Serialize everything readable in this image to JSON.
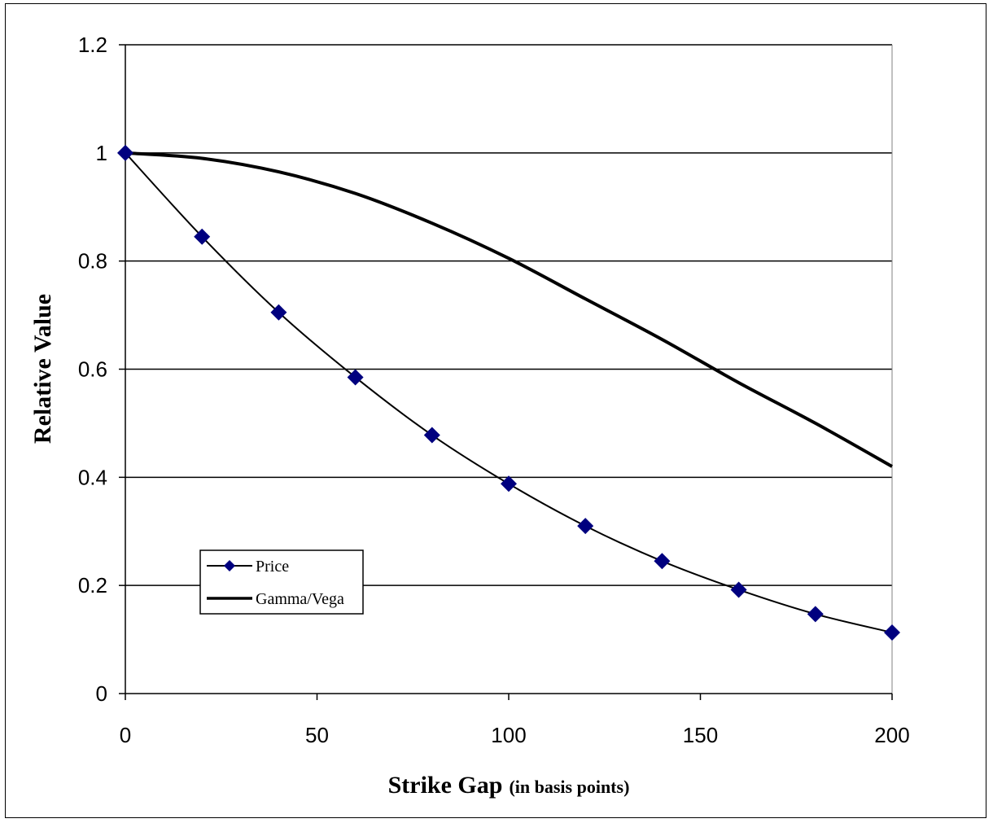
{
  "chart_data": {
    "type": "line",
    "xlabel_main": "Strike Gap",
    "xlabel_sub": "(in basis points)",
    "ylabel": "Relative Value",
    "xlim": [
      0,
      200
    ],
    "ylim": [
      0,
      1.2
    ],
    "x_ticks": [
      0,
      50,
      100,
      150,
      200
    ],
    "y_ticks": [
      0,
      0.2,
      0.4,
      0.6,
      0.8,
      1,
      1.2
    ],
    "x_tick_labels": [
      "0",
      "50",
      "100",
      "150",
      "200"
    ],
    "y_tick_labels": [
      "0",
      "0.2",
      "0.4",
      "0.6",
      "0.8",
      "1",
      "1.2"
    ],
    "grid": "horizontal",
    "legend_position": "lower-left",
    "series": [
      {
        "name": "Price",
        "marker": "diamond",
        "color": "#000000",
        "marker_color": "#00007f",
        "x": [
          0,
          20,
          40,
          60,
          80,
          100,
          120,
          140,
          160,
          180,
          200
        ],
        "values": [
          1.0,
          0.845,
          0.705,
          0.585,
          0.478,
          0.388,
          0.31,
          0.245,
          0.192,
          0.147,
          0.113
        ]
      },
      {
        "name": "Gamma/Vega",
        "marker": "none",
        "color": "#000000",
        "x": [
          0,
          20,
          40,
          60,
          80,
          100,
          120,
          140,
          160,
          180,
          200
        ],
        "values": [
          1.0,
          0.99,
          0.965,
          0.925,
          0.87,
          0.805,
          0.73,
          0.655,
          0.575,
          0.5,
          0.42
        ]
      }
    ]
  }
}
